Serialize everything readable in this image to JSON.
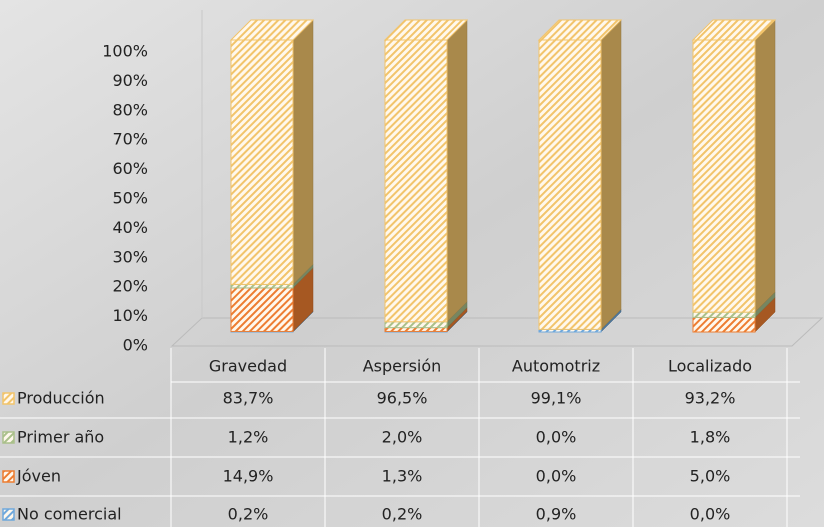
{
  "chart_data": {
    "type": "bar",
    "stacked": true,
    "categories": [
      "Gravedad",
      "Aspersión",
      "Automotriz",
      "Localizado"
    ],
    "series": [
      {
        "name": "Producción",
        "color": "#f2c46b",
        "values": [
          83.7,
          96.5,
          99.1,
          93.2
        ],
        "value_labels": [
          "83,7%",
          "96,5%",
          "99,1%",
          "93,2%"
        ]
      },
      {
        "name": "Primer año",
        "color": "#a9c08a",
        "values": [
          1.2,
          2.0,
          0.0,
          1.8
        ],
        "value_labels": [
          "1,2%",
          "2,0%",
          "0,0%",
          "1,8%"
        ]
      },
      {
        "name": "Jóven",
        "color": "#ed7d31",
        "values": [
          14.9,
          1.3,
          0.0,
          5.0
        ],
        "value_labels": [
          "14,9%",
          "1,3%",
          "0,0%",
          "5,0%"
        ]
      },
      {
        "name": "No comercial",
        "color": "#6fa8dc",
        "values": [
          0.2,
          0.2,
          0.9,
          0.0
        ],
        "value_labels": [
          "0,2%",
          "0,2%",
          "0,9%",
          "0,0%"
        ]
      }
    ],
    "ylim": [
      0,
      100
    ],
    "yticks": [
      {
        "value": 0,
        "label": "0%"
      },
      {
        "value": 10,
        "label": "10%"
      },
      {
        "value": 20,
        "label": "20%"
      },
      {
        "value": 30,
        "label": "30%"
      },
      {
        "value": 40,
        "label": "40%"
      },
      {
        "value": 50,
        "label": "50%"
      },
      {
        "value": 60,
        "label": "60%"
      },
      {
        "value": 70,
        "label": "70%"
      },
      {
        "value": 80,
        "label": "80%"
      },
      {
        "value": 90,
        "label": "90%"
      },
      {
        "value": 100,
        "label": "100%"
      }
    ]
  }
}
